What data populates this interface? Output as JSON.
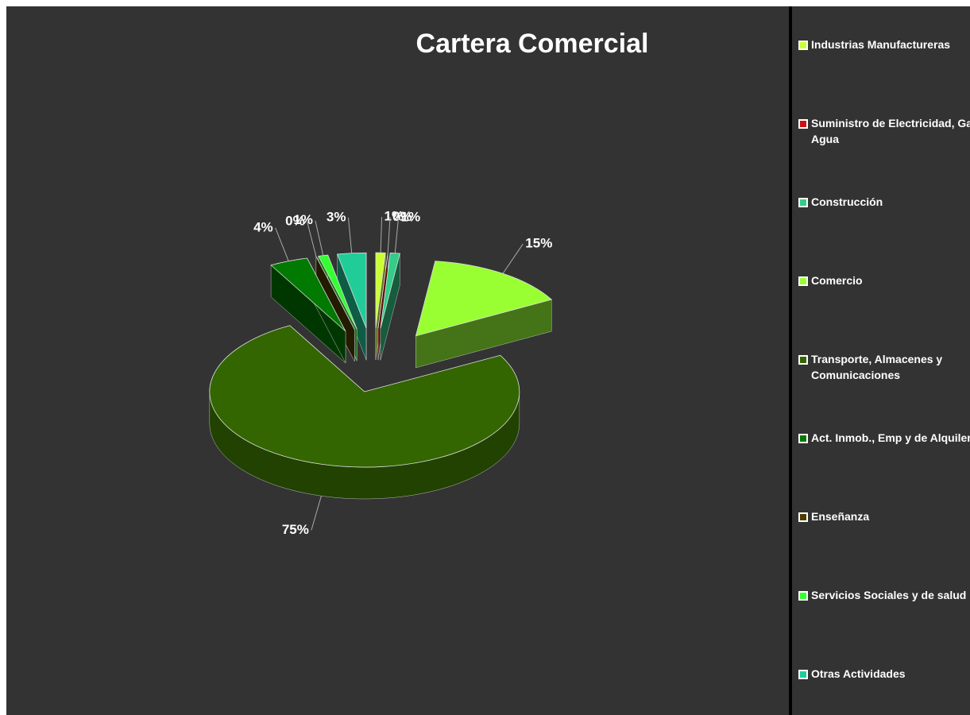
{
  "chart_data": {
    "type": "pie3d",
    "title": "Cartera Comercial",
    "categories": [
      "Industrias Manufactureras",
      "Suministro de Electricidad, Gas y Agua",
      "Construcción",
      "Comercio",
      "Transporte, Almacenes y Comunicaciones",
      "Act. Inmob., Emp y de Alquiler",
      "Enseñanza",
      "Servicios Sociales y de salud",
      "Otras Actividades"
    ],
    "values": [
      1,
      0,
      1,
      15,
      75,
      4,
      0,
      1,
      3
    ],
    "value_labels": [
      "1%",
      "0%",
      "1%",
      "15%",
      "75%",
      "4%",
      "0%",
      "1%",
      "3%"
    ],
    "colors": [
      "#ccff33",
      "#cc1111",
      "#33cc88",
      "#99ff33",
      "#336600",
      "#007a00",
      "#4d3b00",
      "#33ff33",
      "#22cc99"
    ],
    "legend": "right"
  }
}
